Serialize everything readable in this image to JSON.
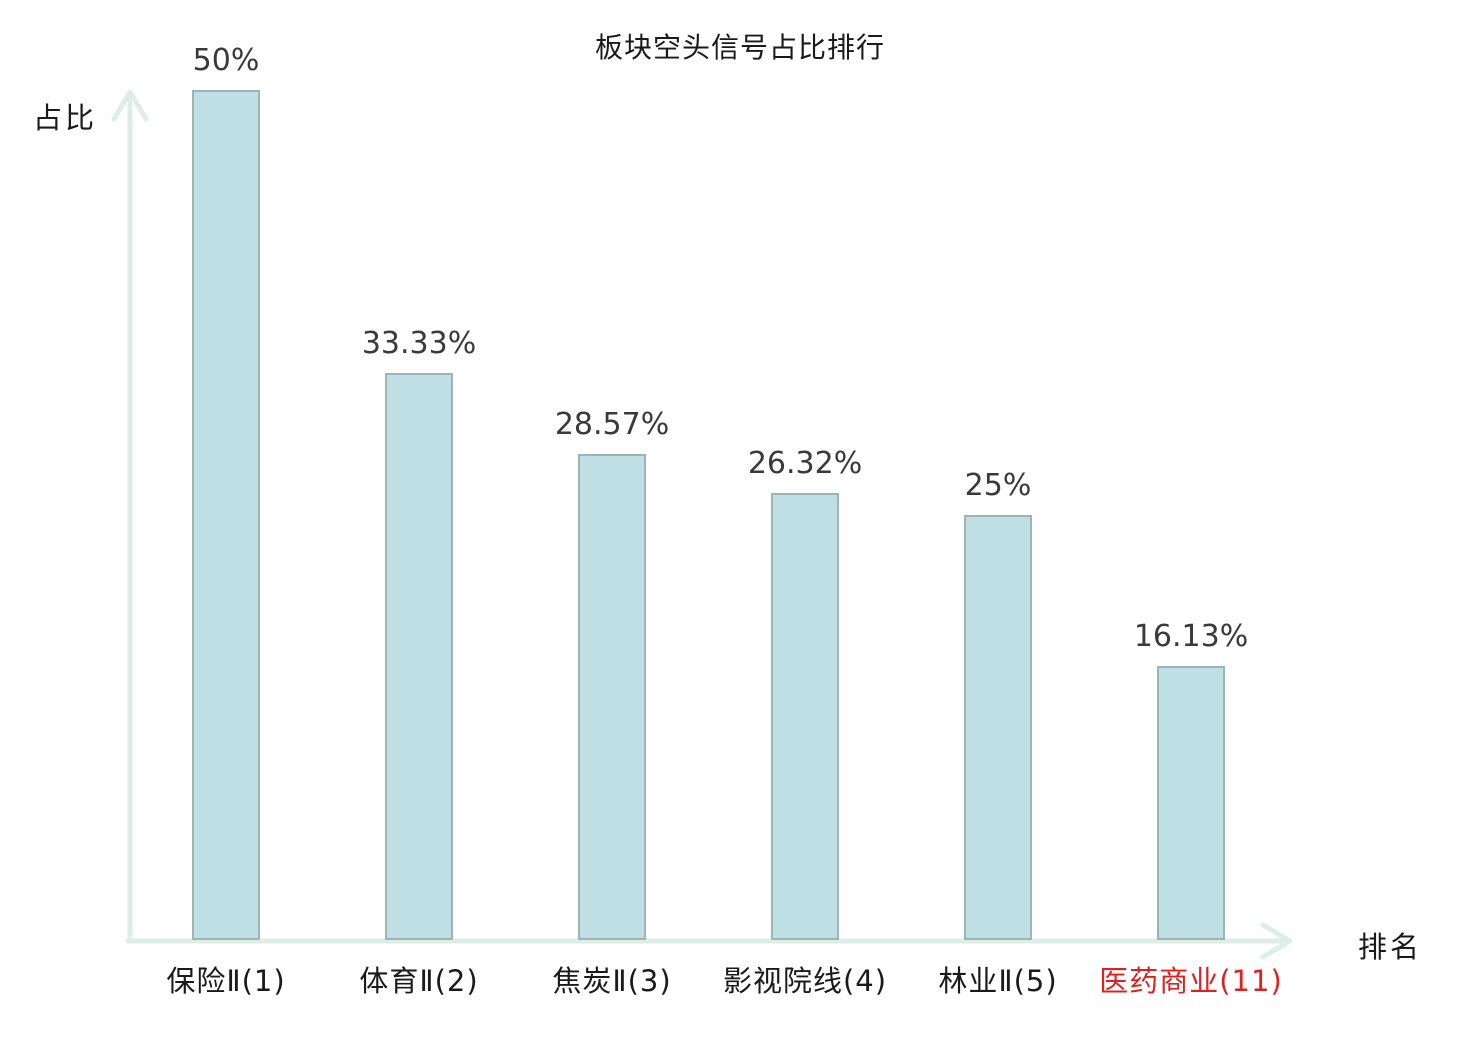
{
  "title": "板块空头信号占比排行",
  "axes": {
    "y_label": "占比",
    "x_label": "排名"
  },
  "colors": {
    "bar_fill": "#bedfe3",
    "bar_border": "#9fb3b5",
    "axis": "#ddeee9",
    "value_text": "#3a3a3a",
    "category_text": "#1a1a1a",
    "highlight_text": "#e02020"
  },
  "chart_data": {
    "type": "bar",
    "title": "板块空头信号占比排行",
    "xlabel": "排名",
    "ylabel": "占比",
    "categories": [
      "保险Ⅱ(1)",
      "体育Ⅱ(2)",
      "焦炭Ⅱ(3)",
      "影视院线(4)",
      "林业Ⅱ(5)",
      "医药商业(11)"
    ],
    "values": [
      50,
      33.33,
      28.57,
      26.32,
      25,
      16.13
    ],
    "value_labels": [
      "50%",
      "33.33%",
      "28.57%",
      "26.32%",
      "25%",
      "16.13%"
    ],
    "highlight_index": 5,
    "ylim": [
      0,
      50
    ],
    "grid": false,
    "legend": false
  }
}
